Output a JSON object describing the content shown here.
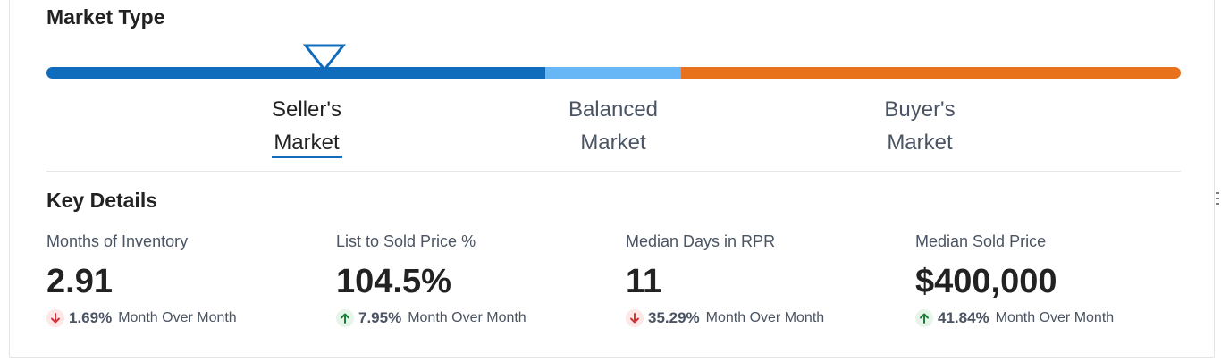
{
  "market_type": {
    "title": "Market Type",
    "position_fraction": 0.25,
    "segments": [
      {
        "line1": "Seller's",
        "line2": "Market",
        "active": true
      },
      {
        "line1": "Balanced",
        "line2": "Market",
        "active": false
      },
      {
        "line1": "Buyer's",
        "line2": "Market",
        "active": false
      }
    ]
  },
  "key_details": {
    "title": "Key Details",
    "metrics": [
      {
        "label": "Months of Inventory",
        "value": "2.91",
        "change": "1.69%",
        "change_label": "Month Over Month",
        "direction": "down"
      },
      {
        "label": "List to Sold Price %",
        "value": "104.5%",
        "change": "7.95%",
        "change_label": "Month Over Month",
        "direction": "up"
      },
      {
        "label": "Median Days in RPR",
        "value": "11",
        "change": "35.29%",
        "change_label": "Month Over Month",
        "direction": "down"
      },
      {
        "label": "Median Sold Price",
        "value": "$400,000",
        "change": "41.84%",
        "change_label": "Month Over Month",
        "direction": "up"
      }
    ]
  },
  "icons": {
    "marker": "triangle-marker-icon",
    "down": "arrow-down-icon",
    "up": "arrow-up-icon"
  },
  "colors": {
    "seller": "#0f6cbd",
    "balanced": "#67b7f7",
    "buyer": "#e8711c",
    "down_arrow": "#d13438",
    "down_bg": "#fde7e7",
    "up_arrow": "#1a7f37",
    "up_bg": "#e6f4ea"
  }
}
